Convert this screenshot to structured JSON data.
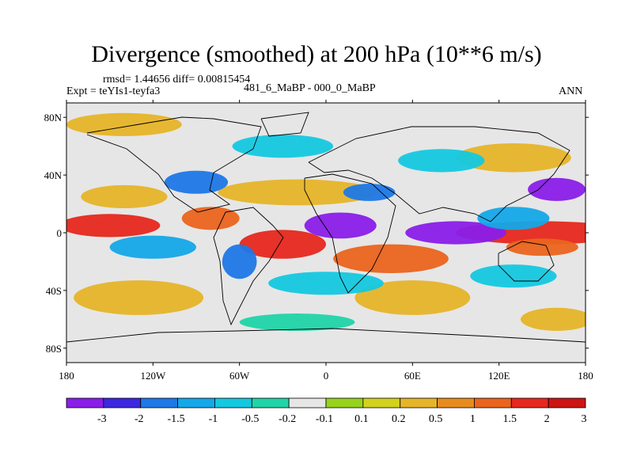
{
  "title": "Divergence (smoothed) at 200 hPa (10**6 m/s)",
  "stats": "rmsd= 1.44656 diff= 0.00815454",
  "experiment": "Expt = teYIs1-teyfa3",
  "case": "481_6_MaBP - 000_0_MaBP",
  "season": "ANN",
  "map": {
    "lon_range": [
      -180,
      180
    ],
    "lat_range": [
      -90,
      90
    ],
    "lat_ticks": [
      {
        "value": 80,
        "label": "80N"
      },
      {
        "value": 40,
        "label": "40N"
      },
      {
        "value": 0,
        "label": "0"
      },
      {
        "value": -40,
        "label": "40S"
      },
      {
        "value": -80,
        "label": "80S"
      }
    ],
    "lon_ticks": [
      {
        "value": -180,
        "label": "180"
      },
      {
        "value": -120,
        "label": "120W"
      },
      {
        "value": -60,
        "label": "60W"
      },
      {
        "value": 0,
        "label": "0"
      },
      {
        "value": 60,
        "label": "60E"
      },
      {
        "value": 120,
        "label": "120E"
      },
      {
        "value": 180,
        "label": "180"
      }
    ]
  },
  "colorbar": {
    "labels": [
      "-3",
      "-2",
      "-1.5",
      "-1",
      "-0.5",
      "-0.2",
      "-0.1",
      "0.1",
      "0.2",
      "0.5",
      "1",
      "1.5",
      "2",
      "3"
    ],
    "colors": [
      "#8a1ee8",
      "#3c28e0",
      "#1e78e6",
      "#14a8e8",
      "#14c8e0",
      "#20d4a8",
      "#e6e6e6",
      "#96d21e",
      "#d2d21e",
      "#e6b428",
      "#e68c1e",
      "#eb641e",
      "#e6281e",
      "#cc1414"
    ]
  },
  "regions": [
    {
      "lon": 150,
      "lat": 0,
      "rx": 60,
      "ry": 8,
      "level": 12
    },
    {
      "lon": -150,
      "lat": 5,
      "rx": 35,
      "ry": 8,
      "level": 12
    },
    {
      "lon": -30,
      "lat": -8,
      "rx": 30,
      "ry": 10,
      "level": 12
    },
    {
      "lon": -80,
      "lat": 10,
      "rx": 20,
      "ry": 8,
      "level": 11
    },
    {
      "lon": 45,
      "lat": -18,
      "rx": 40,
      "ry": 10,
      "level": 11
    },
    {
      "lon": 150,
      "lat": -10,
      "rx": 25,
      "ry": 6,
      "level": 11
    },
    {
      "lon": -20,
      "lat": 28,
      "rx": 55,
      "ry": 9,
      "level": 9
    },
    {
      "lon": -140,
      "lat": 25,
      "rx": 30,
      "ry": 8,
      "level": 9
    },
    {
      "lon": 130,
      "lat": 52,
      "rx": 40,
      "ry": 10,
      "level": 9
    },
    {
      "lon": -140,
      "lat": 75,
      "rx": 40,
      "ry": 8,
      "level": 9
    },
    {
      "lon": -130,
      "lat": -45,
      "rx": 45,
      "ry": 12,
      "level": 9
    },
    {
      "lon": 60,
      "lat": -45,
      "rx": 40,
      "ry": 12,
      "level": 9
    },
    {
      "lon": 160,
      "lat": -60,
      "rx": 25,
      "ry": 8,
      "level": 9
    },
    {
      "lon": 10,
      "lat": 5,
      "rx": 25,
      "ry": 9,
      "level": 0
    },
    {
      "lon": 90,
      "lat": 0,
      "rx": 35,
      "ry": 8,
      "level": 0
    },
    {
      "lon": 160,
      "lat": 30,
      "rx": 20,
      "ry": 8,
      "level": 0
    },
    {
      "lon": 30,
      "lat": 28,
      "rx": 18,
      "ry": 6,
      "level": 2
    },
    {
      "lon": -90,
      "lat": 35,
      "rx": 22,
      "ry": 8,
      "level": 2
    },
    {
      "lon": -60,
      "lat": -20,
      "rx": 12,
      "ry": 12,
      "level": 2
    },
    {
      "lon": -120,
      "lat": -10,
      "rx": 30,
      "ry": 8,
      "level": 3
    },
    {
      "lon": 130,
      "lat": 10,
      "rx": 25,
      "ry": 8,
      "level": 3
    },
    {
      "lon": -30,
      "lat": 60,
      "rx": 35,
      "ry": 8,
      "level": 4
    },
    {
      "lon": 80,
      "lat": 50,
      "rx": 30,
      "ry": 8,
      "level": 4
    },
    {
      "lon": 0,
      "lat": -35,
      "rx": 40,
      "ry": 8,
      "level": 4
    },
    {
      "lon": 130,
      "lat": -30,
      "rx": 30,
      "ry": 8,
      "level": 4
    },
    {
      "lon": -20,
      "lat": -62,
      "rx": 40,
      "ry": 6,
      "level": 5
    }
  ]
}
